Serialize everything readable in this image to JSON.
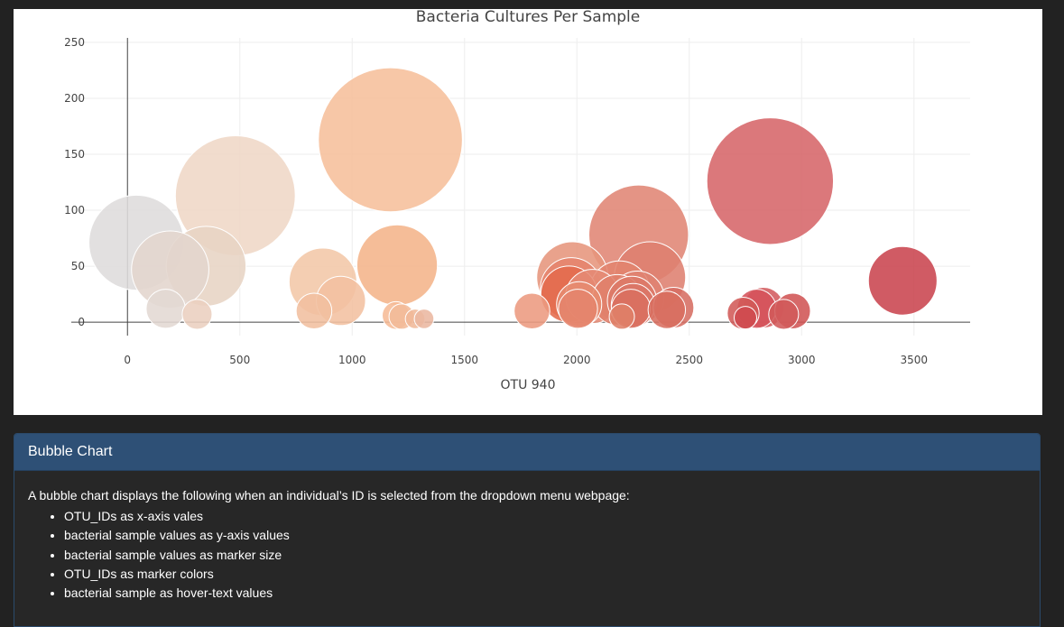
{
  "chart_data": {
    "type": "scatter",
    "title": "Bacteria Cultures Per Sample",
    "xlabel": "OTU 940",
    "ylabel": "",
    "xlim": [
      -250,
      3750
    ],
    "ylim": [
      -12,
      254
    ],
    "xticks": [
      0,
      500,
      1000,
      1500,
      2000,
      2500,
      3000,
      3500
    ],
    "yticks": [
      0,
      50,
      100,
      150,
      200,
      250
    ],
    "grid": true,
    "legend": "none",
    "size_mode": "marker size = sample value",
    "color_mode": "marker color = OTU ID",
    "series": [
      {
        "x": [
          40,
          190,
          350,
          480,
          870,
          950,
          170,
          310,
          830,
          1170,
          1200,
          1195,
          1220,
          1280,
          1320,
          1800,
          1980,
          1975,
          1965,
          2010,
          2005,
          2070,
          2190,
          2180,
          2200,
          2275,
          2325,
          2245,
          2250,
          2240,
          2400,
          2430,
          2270,
          2860,
          2800,
          2830,
          2920,
          2960,
          2740,
          2750,
          3450
        ],
        "y": [
          71,
          47,
          50,
          113,
          36,
          19,
          12,
          7,
          10,
          163,
          51,
          6,
          5,
          3,
          3,
          10,
          40,
          30,
          25,
          16,
          12,
          23,
          28,
          20,
          5,
          78,
          40,
          19,
          15,
          12,
          11,
          13,
          22,
          126,
          12,
          13,
          7,
          10,
          8,
          4,
          37
        ],
        "color": [
          "#dedcdc",
          "#e3d5cd",
          "#e7d4c4",
          "#efd7c6",
          "#f2c7a7",
          "#f2c0a0",
          "#e3d8d3",
          "#ebcfbf",
          "#f1bf9f",
          "#f6bf9b",
          "#f4b48a",
          "#f6bb96",
          "#f3bb98",
          "#f0b898",
          "#eab7a0",
          "#ec9a80",
          "#e6957c",
          "#e5836c",
          "#e46b4c",
          "#e68b70",
          "#e5846c",
          "#e58b75",
          "#e2846e",
          "#e0806b",
          "#df8068",
          "#e08574",
          "#de7f70",
          "#dc7968",
          "#db7566",
          "#da7060",
          "#d86e60",
          "#d66d62",
          "#df8271",
          "#d66569",
          "#d5525a",
          "#d35b5e",
          "#d25a5a",
          "#d05454",
          "#d15a58",
          "#cf4a4e",
          "#c9444f"
        ]
      }
    ]
  },
  "info": {
    "header": "Bubble Chart",
    "intro": "A bubble chart displays the following when an individual’s ID is selected from the dropdown menu webpage:",
    "items": [
      "OTU_IDs as x-axis vales",
      "bacterial sample values as y-axis values",
      "bacterial sample values as marker size",
      "OTU_IDs as marker colors",
      "bacterial sample as hover-text values"
    ]
  }
}
